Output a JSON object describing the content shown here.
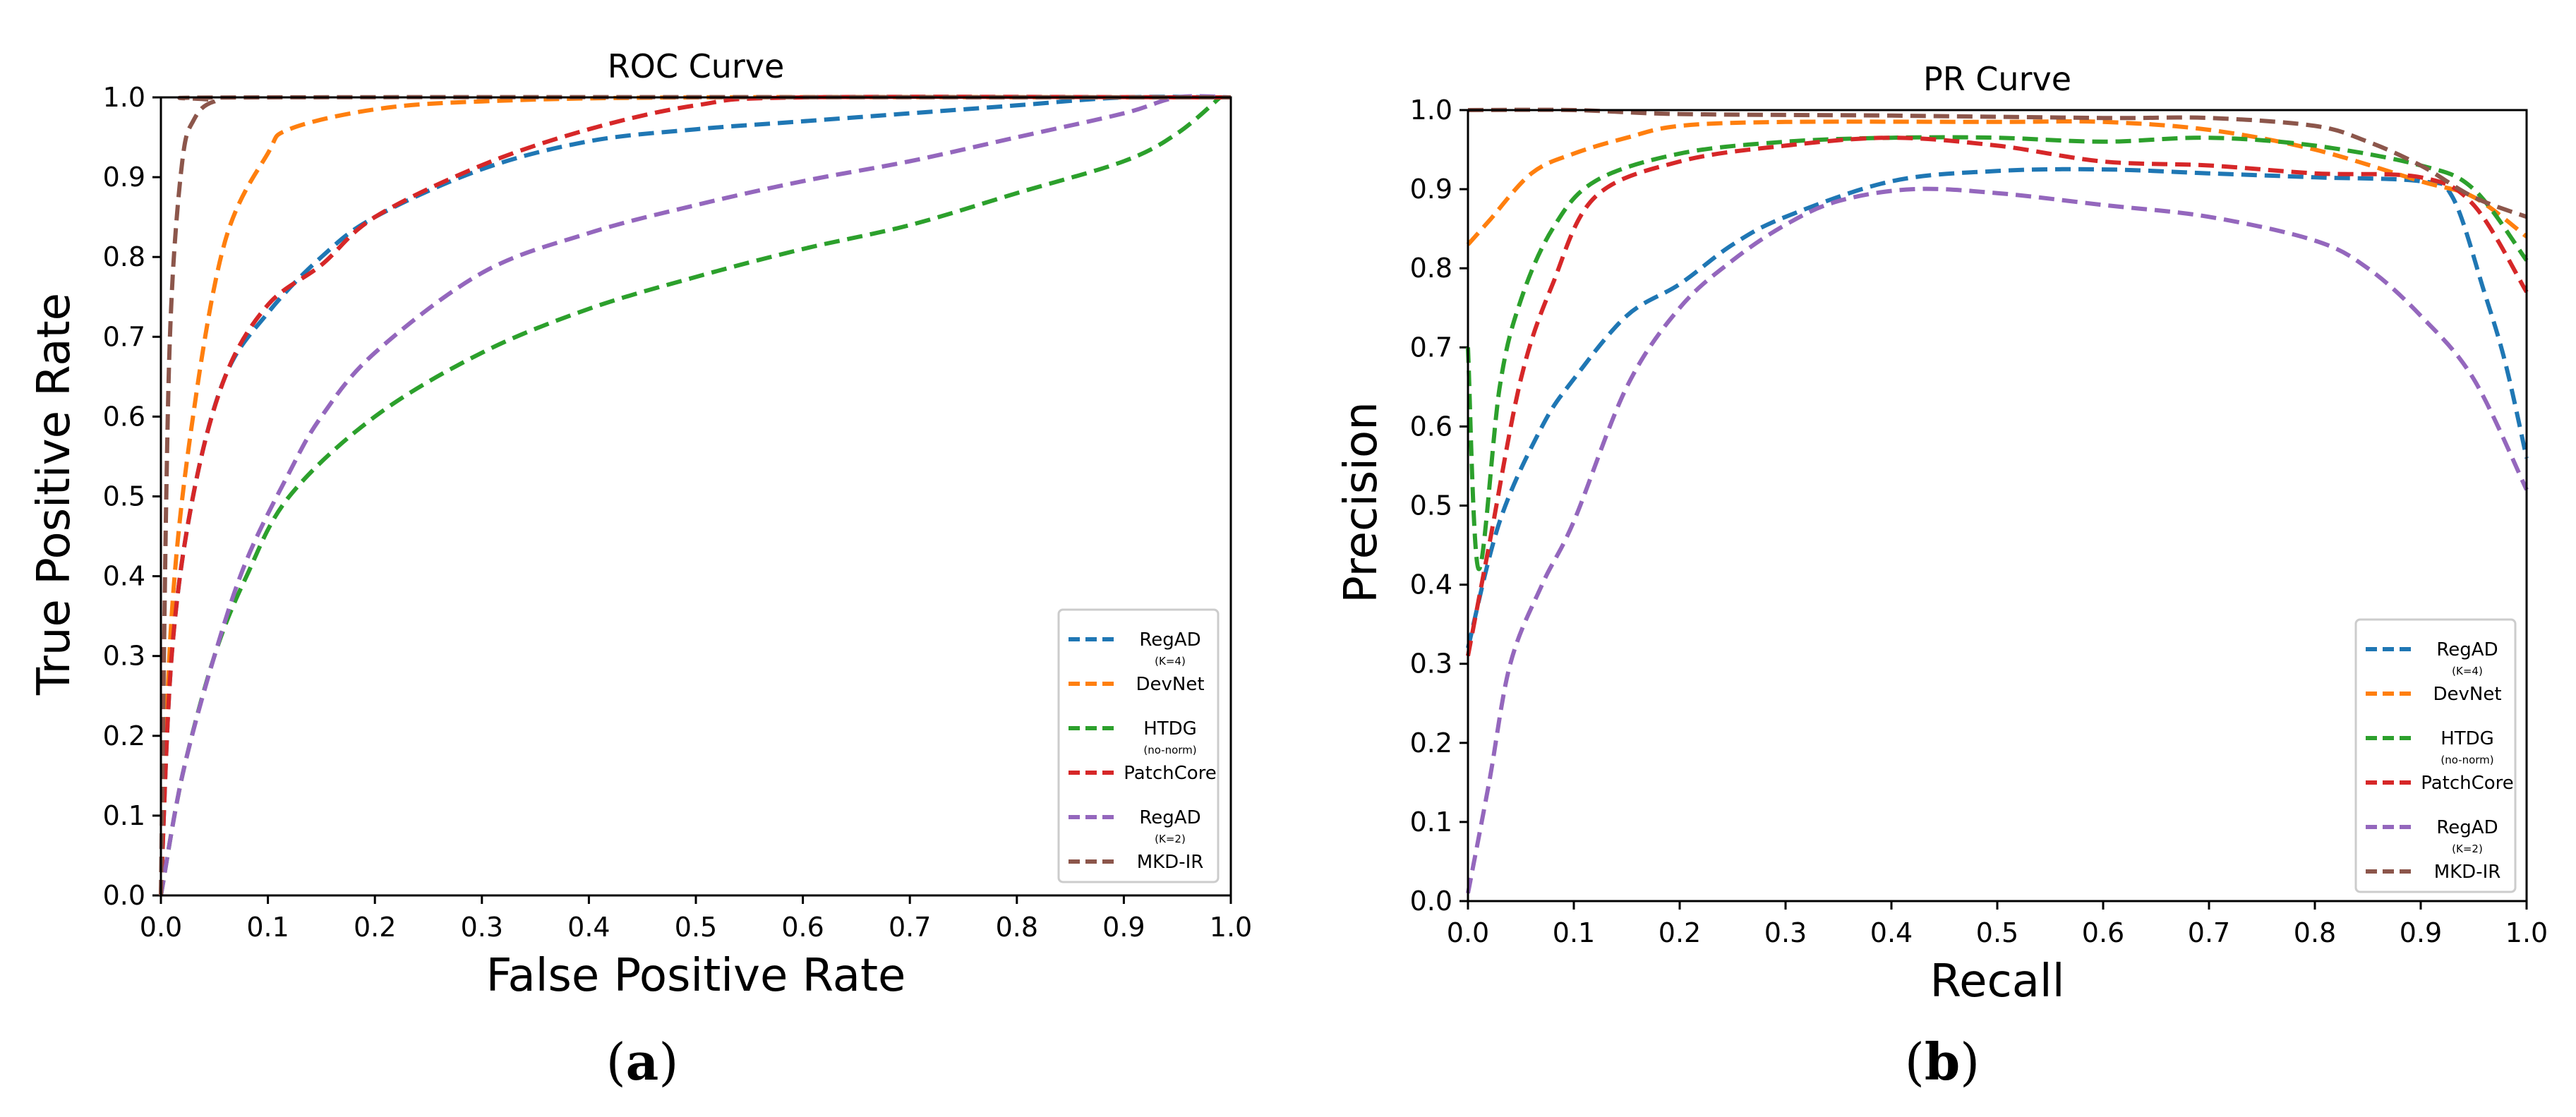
{
  "colors": {
    "RegAD_K4": "#1f77b4",
    "DevNet": "#ff7f0e",
    "HTDG": "#2ca02c",
    "PatchCore": "#d62728",
    "RegAD_K2": "#9467bd",
    "MKD_IR": "#8c564b"
  },
  "legend_entries": [
    {
      "key": "RegAD_K4",
      "name": "RegAD",
      "sub": "(K=4)"
    },
    {
      "key": "DevNet",
      "name": "DevNet",
      "sub": ""
    },
    {
      "key": "HTDG",
      "name": "HTDG",
      "sub": "(no-norm)"
    },
    {
      "key": "PatchCore",
      "name": "PatchCore",
      "sub": ""
    },
    {
      "key": "RegAD_K2",
      "name": "RegAD",
      "sub": "(K=2)"
    },
    {
      "key": "MKD_IR",
      "name": "MKD-IR",
      "sub": ""
    }
  ],
  "chart_data": [
    {
      "id": "roc",
      "type": "line",
      "panel_label": "a",
      "title": "ROC Curve",
      "xlabel": "False Positive Rate",
      "ylabel": "True Positive Rate",
      "xlim": [
        0,
        1
      ],
      "ylim": [
        0,
        1
      ],
      "xticks": [
        "0.0",
        "0.1",
        "0.2",
        "0.3",
        "0.4",
        "0.5",
        "0.6",
        "0.7",
        "0.8",
        "0.9",
        "1.0"
      ],
      "yticks": [
        "0.0",
        "0.1",
        "0.2",
        "0.3",
        "0.4",
        "0.5",
        "0.6",
        "0.7",
        "0.8",
        "0.9",
        "1.0"
      ],
      "grid": false,
      "legend_position": "lower-right",
      "series": [
        {
          "key": "RegAD_K4",
          "name": "RegAD (K=4)",
          "points": [
            [
              0,
              0
            ],
            [
              0.01,
              0.3
            ],
            [
              0.03,
              0.5
            ],
            [
              0.06,
              0.65
            ],
            [
              0.1,
              0.73
            ],
            [
              0.15,
              0.8
            ],
            [
              0.2,
              0.85
            ],
            [
              0.3,
              0.91
            ],
            [
              0.4,
              0.945
            ],
            [
              0.5,
              0.96
            ],
            [
              0.6,
              0.97
            ],
            [
              0.7,
              0.98
            ],
            [
              0.8,
              0.99
            ],
            [
              0.9,
              1.0
            ],
            [
              1.0,
              1.0
            ]
          ]
        },
        {
          "key": "DevNet",
          "name": "DevNet",
          "points": [
            [
              0,
              0
            ],
            [
              0.01,
              0.35
            ],
            [
              0.03,
              0.6
            ],
            [
              0.06,
              0.82
            ],
            [
              0.1,
              0.93
            ],
            [
              0.12,
              0.96
            ],
            [
              0.2,
              0.985
            ],
            [
              0.3,
              0.995
            ],
            [
              0.5,
              1.0
            ],
            [
              1.0,
              1.0
            ]
          ]
        },
        {
          "key": "HTDG",
          "name": "HTDG (no-norm)",
          "points": [
            [
              0,
              0
            ],
            [
              0.02,
              0.15
            ],
            [
              0.05,
              0.3
            ],
            [
              0.08,
              0.4
            ],
            [
              0.12,
              0.5
            ],
            [
              0.2,
              0.6
            ],
            [
              0.3,
              0.68
            ],
            [
              0.4,
              0.735
            ],
            [
              0.5,
              0.775
            ],
            [
              0.6,
              0.81
            ],
            [
              0.7,
              0.84
            ],
            [
              0.8,
              0.88
            ],
            [
              0.9,
              0.92
            ],
            [
              0.95,
              0.955
            ],
            [
              0.99,
              1.0
            ]
          ]
        },
        {
          "key": "PatchCore",
          "name": "PatchCore",
          "points": [
            [
              0,
              0
            ],
            [
              0.01,
              0.3
            ],
            [
              0.03,
              0.5
            ],
            [
              0.06,
              0.65
            ],
            [
              0.1,
              0.74
            ],
            [
              0.15,
              0.79
            ],
            [
              0.2,
              0.85
            ],
            [
              0.3,
              0.915
            ],
            [
              0.4,
              0.96
            ],
            [
              0.5,
              0.99
            ],
            [
              0.6,
              1.0
            ],
            [
              1.0,
              1.0
            ]
          ]
        },
        {
          "key": "RegAD_K2",
          "name": "RegAD (K=2)",
          "points": [
            [
              0,
              0
            ],
            [
              0.02,
              0.15
            ],
            [
              0.05,
              0.3
            ],
            [
              0.08,
              0.42
            ],
            [
              0.12,
              0.53
            ],
            [
              0.15,
              0.6
            ],
            [
              0.2,
              0.68
            ],
            [
              0.3,
              0.78
            ],
            [
              0.4,
              0.83
            ],
            [
              0.5,
              0.865
            ],
            [
              0.6,
              0.895
            ],
            [
              0.7,
              0.92
            ],
            [
              0.8,
              0.95
            ],
            [
              0.9,
              0.98
            ],
            [
              0.95,
              1.0
            ],
            [
              1.0,
              1.0
            ]
          ]
        },
        {
          "key": "MKD_IR",
          "name": "MKD-IR",
          "points": [
            [
              0,
              0
            ],
            [
              0.005,
              0.5
            ],
            [
              0.01,
              0.75
            ],
            [
              0.02,
              0.92
            ],
            [
              0.03,
              0.97
            ],
            [
              0.05,
              0.995
            ],
            [
              0.1,
              1.0
            ],
            [
              1.0,
              1.0
            ]
          ]
        }
      ]
    },
    {
      "id": "pr",
      "type": "line",
      "panel_label": "b",
      "title": "PR Curve",
      "xlabel": "Recall",
      "ylabel": "Precision",
      "xlim": [
        0,
        1
      ],
      "ylim": [
        0,
        1
      ],
      "xticks": [
        "0.0",
        "0.1",
        "0.2",
        "0.3",
        "0.4",
        "0.5",
        "0.6",
        "0.7",
        "0.8",
        "0.9",
        "1.0"
      ],
      "yticks": [
        "0.0",
        "0.1",
        "0.2",
        "0.3",
        "0.4",
        "0.5",
        "0.6",
        "0.7",
        "0.8",
        "0.9",
        "1.0"
      ],
      "grid": false,
      "legend_position": "lower-right",
      "series": [
        {
          "key": "RegAD_K4",
          "name": "RegAD (K=4)",
          "points": [
            [
              0,
              0.32
            ],
            [
              0.03,
              0.48
            ],
            [
              0.07,
              0.6
            ],
            [
              0.1,
              0.66
            ],
            [
              0.15,
              0.74
            ],
            [
              0.2,
              0.78
            ],
            [
              0.25,
              0.83
            ],
            [
              0.3,
              0.865
            ],
            [
              0.4,
              0.91
            ],
            [
              0.5,
              0.923
            ],
            [
              0.6,
              0.925
            ],
            [
              0.7,
              0.92
            ],
            [
              0.8,
              0.915
            ],
            [
              0.9,
              0.91
            ],
            [
              0.93,
              0.89
            ],
            [
              0.96,
              0.77
            ],
            [
              0.98,
              0.68
            ],
            [
              1.0,
              0.56
            ]
          ]
        },
        {
          "key": "DevNet",
          "name": "DevNet",
          "points": [
            [
              0,
              0.83
            ],
            [
              0.02,
              0.86
            ],
            [
              0.06,
              0.92
            ],
            [
              0.1,
              0.945
            ],
            [
              0.15,
              0.965
            ],
            [
              0.2,
              0.98
            ],
            [
              0.3,
              0.985
            ],
            [
              0.5,
              0.985
            ],
            [
              0.6,
              0.985
            ],
            [
              0.7,
              0.975
            ],
            [
              0.8,
              0.95
            ],
            [
              0.9,
              0.91
            ],
            [
              0.95,
              0.89
            ],
            [
              1.0,
              0.84
            ]
          ]
        },
        {
          "key": "HTDG",
          "name": "HTDG (no-norm)",
          "points": [
            [
              0,
              0.7
            ],
            [
              0.01,
              0.42
            ],
            [
              0.03,
              0.65
            ],
            [
              0.05,
              0.76
            ],
            [
              0.08,
              0.85
            ],
            [
              0.12,
              0.91
            ],
            [
              0.2,
              0.945
            ],
            [
              0.3,
              0.96
            ],
            [
              0.4,
              0.965
            ],
            [
              0.5,
              0.965
            ],
            [
              0.6,
              0.96
            ],
            [
              0.7,
              0.965
            ],
            [
              0.8,
              0.955
            ],
            [
              0.9,
              0.93
            ],
            [
              0.95,
              0.9
            ],
            [
              1.0,
              0.81
            ]
          ]
        },
        {
          "key": "PatchCore",
          "name": "PatchCore",
          "points": [
            [
              0,
              0.31
            ],
            [
              0.02,
              0.45
            ],
            [
              0.05,
              0.66
            ],
            [
              0.08,
              0.78
            ],
            [
              0.12,
              0.89
            ],
            [
              0.2,
              0.935
            ],
            [
              0.3,
              0.955
            ],
            [
              0.4,
              0.965
            ],
            [
              0.5,
              0.955
            ],
            [
              0.6,
              0.935
            ],
            [
              0.7,
              0.93
            ],
            [
              0.8,
              0.92
            ],
            [
              0.9,
              0.915
            ],
            [
              0.95,
              0.88
            ],
            [
              1.0,
              0.77
            ]
          ]
        },
        {
          "key": "RegAD_K2",
          "name": "RegAD (K=2)",
          "points": [
            [
              0,
              0.01
            ],
            [
              0.02,
              0.15
            ],
            [
              0.04,
              0.3
            ],
            [
              0.07,
              0.4
            ],
            [
              0.1,
              0.48
            ],
            [
              0.15,
              0.65
            ],
            [
              0.2,
              0.75
            ],
            [
              0.25,
              0.81
            ],
            [
              0.3,
              0.855
            ],
            [
              0.35,
              0.885
            ],
            [
              0.42,
              0.9
            ],
            [
              0.5,
              0.895
            ],
            [
              0.6,
              0.88
            ],
            [
              0.7,
              0.865
            ],
            [
              0.8,
              0.835
            ],
            [
              0.85,
              0.8
            ],
            [
              0.9,
              0.74
            ],
            [
              0.95,
              0.66
            ],
            [
              1.0,
              0.52
            ]
          ]
        },
        {
          "key": "MKD_IR",
          "name": "MKD-IR",
          "points": [
            [
              0,
              1.0
            ],
            [
              0.1,
              1.0
            ],
            [
              0.2,
              0.995
            ],
            [
              0.4,
              0.993
            ],
            [
              0.6,
              0.99
            ],
            [
              0.7,
              0.99
            ],
            [
              0.8,
              0.98
            ],
            [
              0.85,
              0.96
            ],
            [
              0.9,
              0.93
            ],
            [
              0.95,
              0.89
            ],
            [
              1.0,
              0.865
            ]
          ]
        }
      ]
    }
  ]
}
